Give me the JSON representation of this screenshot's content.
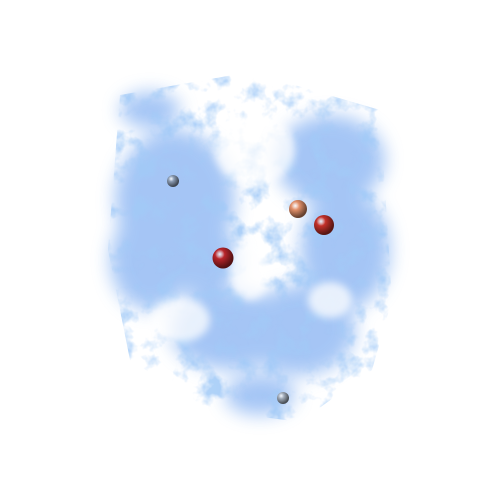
{
  "scene": {
    "background": "#ffffff",
    "cloud_color": "#5b97ee",
    "cloud_highlight": "#a9c8f6"
  },
  "spheres": [
    {
      "name": "small-gray-sphere-upper-left",
      "color": "#8b9cb3"
    },
    {
      "name": "light-orange-sphere",
      "color": "#e2906a"
    },
    {
      "name": "red-sphere-right",
      "color": "#c4302a"
    },
    {
      "name": "red-sphere-center",
      "color": "#b8252a"
    },
    {
      "name": "small-gray-sphere-bottom",
      "color": "#a3adbb"
    }
  ]
}
